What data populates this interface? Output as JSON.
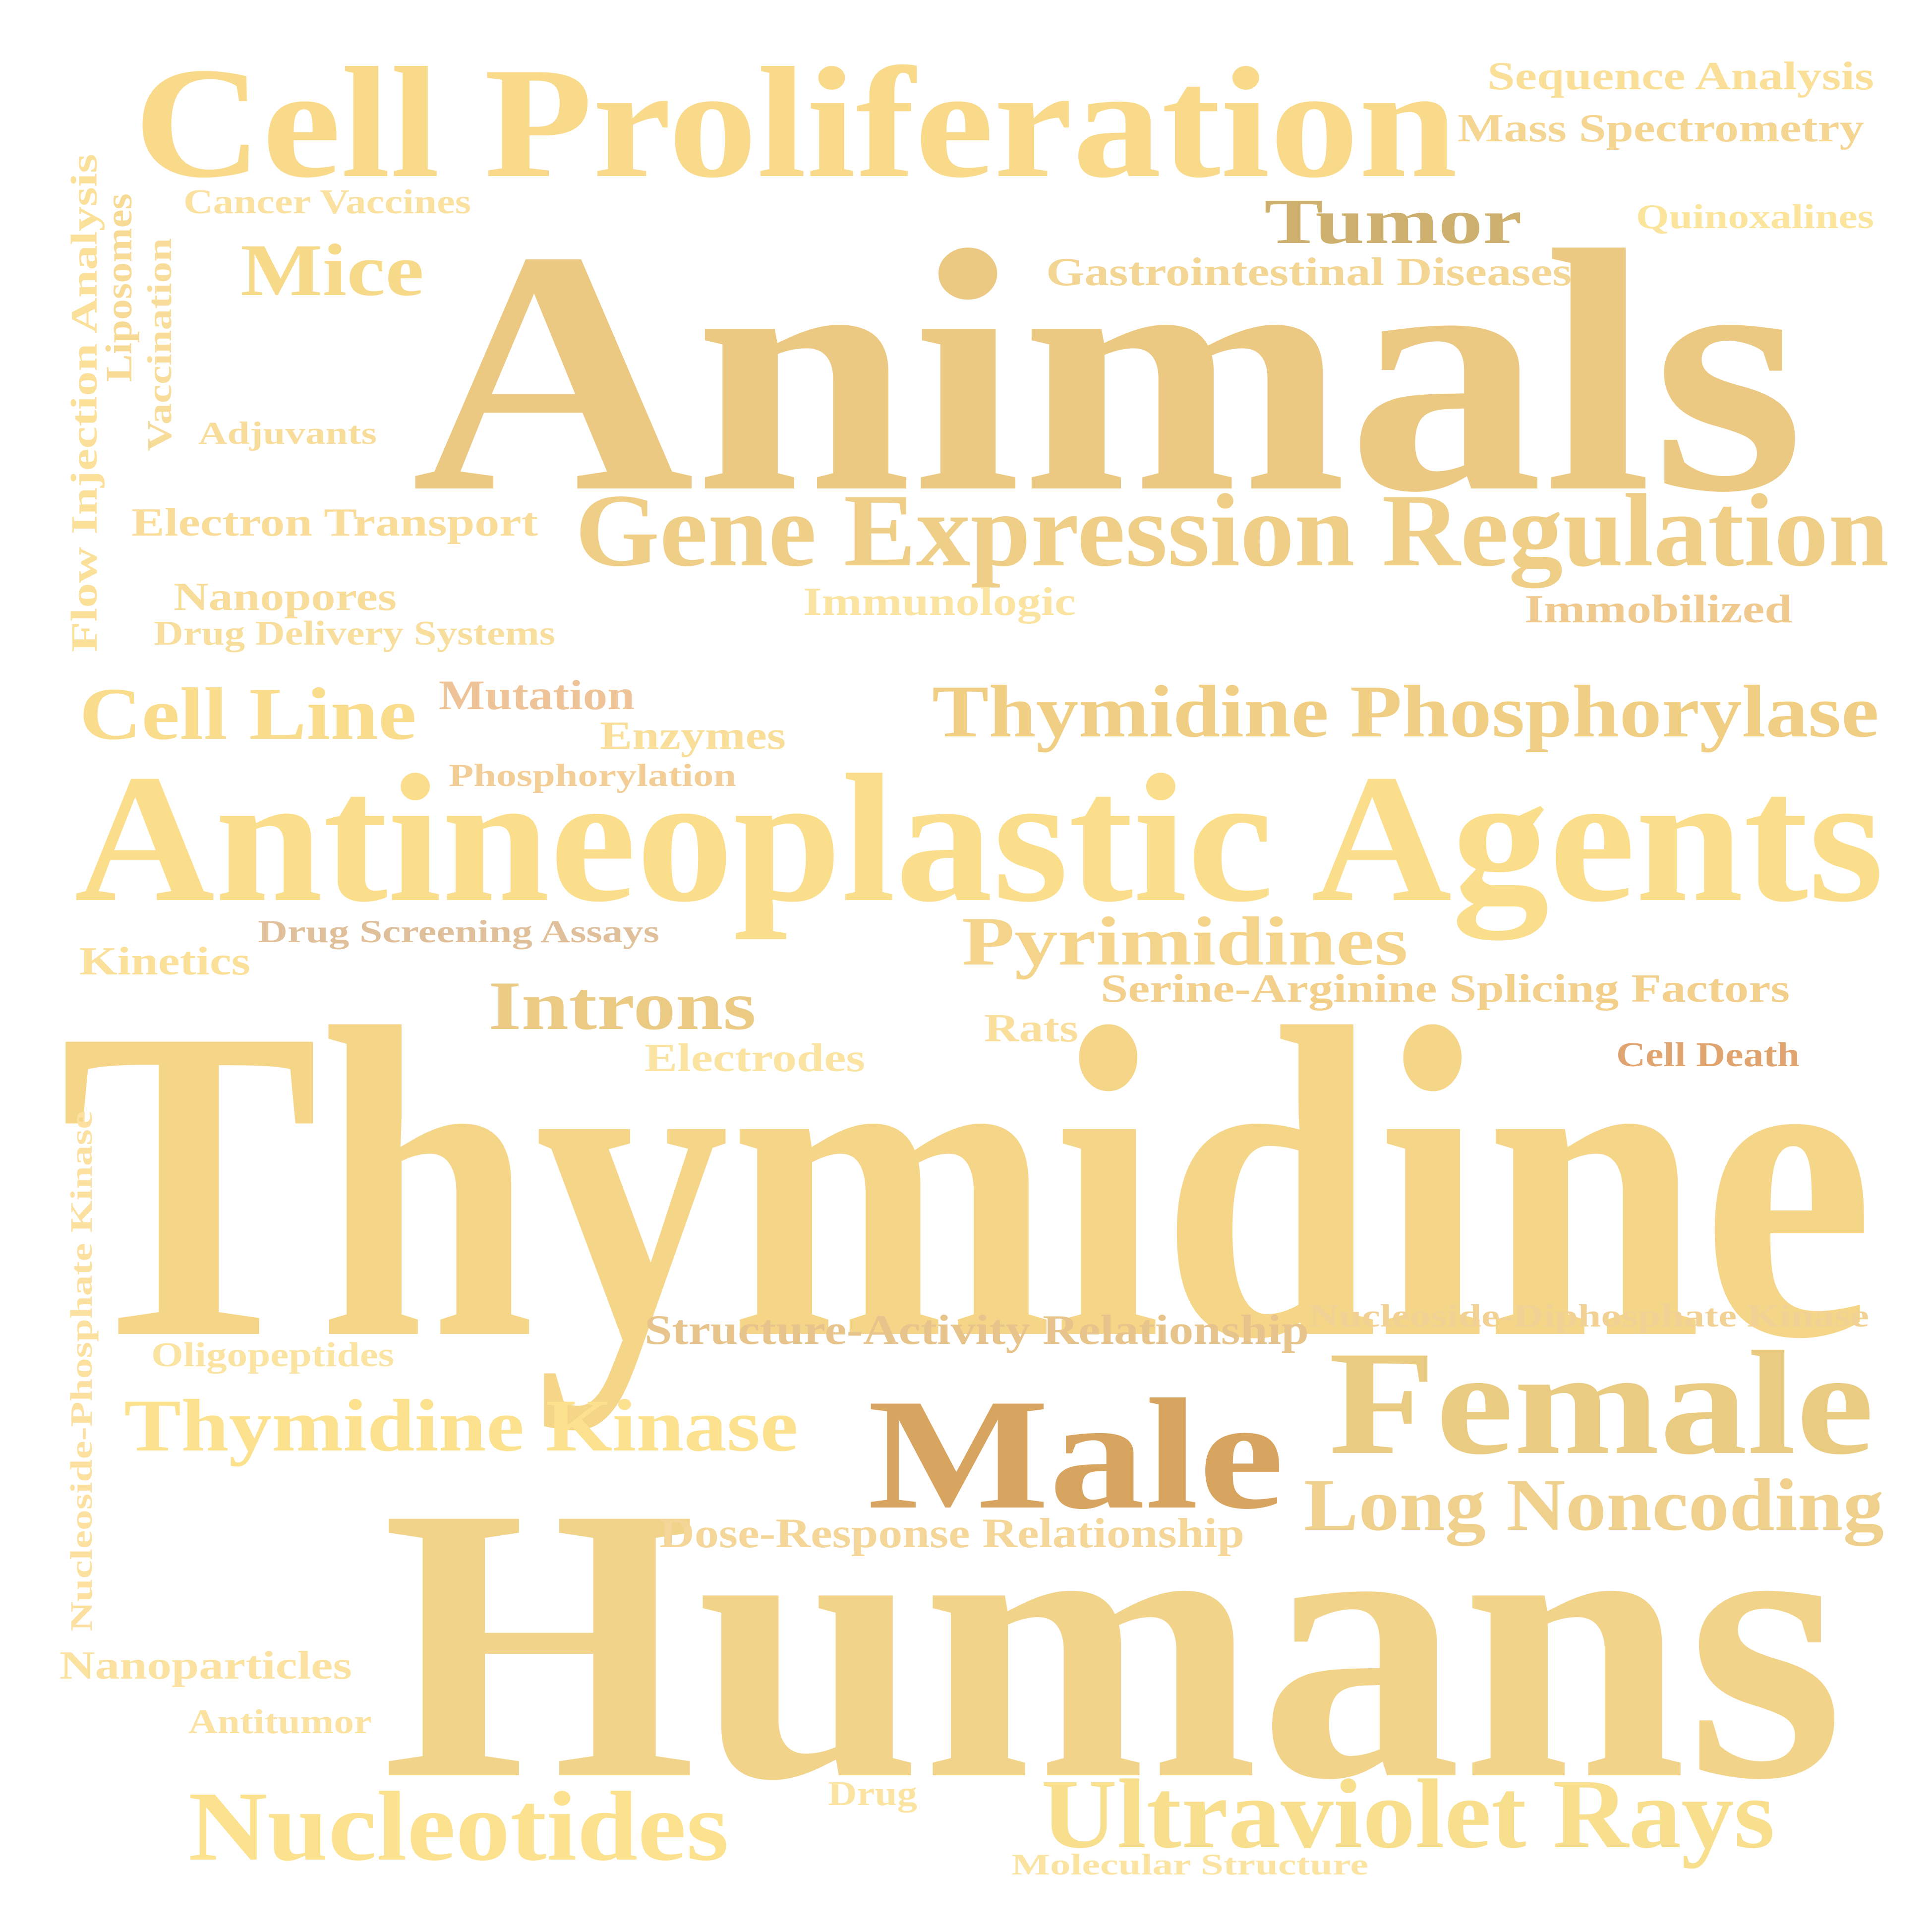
{
  "words": [
    {
      "text": "Thymidine",
      "color": "#F5D688"
    },
    {
      "text": "Humans",
      "color": "#F1D38A"
    },
    {
      "text": "Animals",
      "color": "#EBC982"
    },
    {
      "text": "Antineoplastic Agents",
      "color": "#FBDE8C"
    },
    {
      "text": "Cell Proliferation",
      "color": "#F8DA8A"
    },
    {
      "text": "Gene Expression Regulation",
      "color": "#EFCF88"
    },
    {
      "text": "Male",
      "color": "#D8A560"
    },
    {
      "text": "Female",
      "color": "#EACB82"
    },
    {
      "text": "Thymidine Phosphorylase",
      "color": "#F0CF84"
    },
    {
      "text": "Ultraviolet Rays",
      "color": "#F8DF8E"
    },
    {
      "text": "Long Noncoding",
      "color": "#EFD08C"
    },
    {
      "text": "Nucleotides",
      "color": "#FCE28E"
    },
    {
      "text": "Thymidine Kinase",
      "color": "#FCE28E"
    },
    {
      "text": "Pyrimidines",
      "color": "#F3D48A"
    },
    {
      "text": "Tumor",
      "color": "#CDAF6E"
    },
    {
      "text": "Mice",
      "color": "#F6DA8A"
    },
    {
      "text": "Cell Line",
      "color": "#F9DC8C"
    },
    {
      "text": "Introns",
      "color": "#EBCA84"
    },
    {
      "text": "Sequence Analysis",
      "color": "#FADF98"
    },
    {
      "text": "Mass Spectrometry",
      "color": "#F4D692"
    },
    {
      "text": "Quinoxalines",
      "color": "#FBE49C"
    },
    {
      "text": "Gastrointestinal Diseases",
      "color": "#F3D594"
    },
    {
      "text": "Cancer Vaccines",
      "color": "#FBE1A0"
    },
    {
      "text": "Flow Injection Analysis",
      "color": "#FBE09A"
    },
    {
      "text": "Liposomes",
      "color": "#F7DA96"
    },
    {
      "text": "Vaccination",
      "color": "#F7DC9A"
    },
    {
      "text": "Adjuvants",
      "color": "#F8DC9A"
    },
    {
      "text": "Electron Transport",
      "color": "#F9DC98"
    },
    {
      "text": "Immunologic",
      "color": "#FBE4A2"
    },
    {
      "text": "Immobilized",
      "color": "#F0C98E"
    },
    {
      "text": "Nanopores",
      "color": "#F8DD9A"
    },
    {
      "text": "Drug Delivery Systems",
      "color": "#F8DE9C"
    },
    {
      "text": "Mutation",
      "color": "#EEC398"
    },
    {
      "text": "Enzymes",
      "color": "#F9DE9A"
    },
    {
      "text": "Phosphorylation",
      "color": "#F2CE96"
    },
    {
      "text": "Drug Screening Assays",
      "color": "#E0C09A"
    },
    {
      "text": "Kinetics",
      "color": "#FBE09A"
    },
    {
      "text": "Serine-Arginine Splicing Factors",
      "color": "#F3CF8C"
    },
    {
      "text": "Rats",
      "color": "#F9DE9C"
    },
    {
      "text": "Electrodes",
      "color": "#FBE4A2"
    },
    {
      "text": "Cell Death",
      "color": "#E0A470"
    },
    {
      "text": "Nucleoside-Phosphate Kinase",
      "color": "#FBE0A0"
    },
    {
      "text": "Structure-Activity Relationship",
      "color": "#E6C48C"
    },
    {
      "text": "Nucleoside-Diphosphate Kinase",
      "color": "#F1D194"
    },
    {
      "text": "Oligopeptides",
      "color": "#FBE4A2"
    },
    {
      "text": "Dose-Response Relationship",
      "color": "#F4D698"
    },
    {
      "text": "Nanoparticles",
      "color": "#FBE2A0"
    },
    {
      "text": "Antitumor",
      "color": "#FBE2A0"
    },
    {
      "text": "Drug",
      "color": "#FBE4A2"
    },
    {
      "text": "Molecular Structure",
      "color": "#FBE4A2"
    }
  ]
}
